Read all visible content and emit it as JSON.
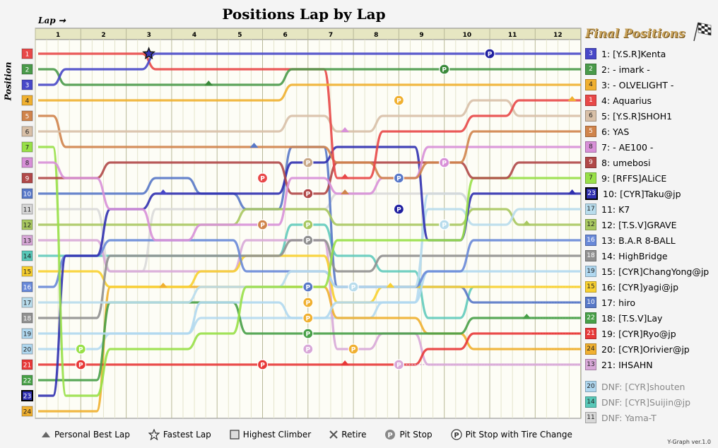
{
  "title": "Positions Lap by Lap",
  "lap_axis_label": "Lap",
  "position_axis_label": "Position",
  "final_title": "Final Positions",
  "version": "Y-Graph ver.1.0",
  "legend_items": {
    "personal_best": "Personal Best Lap",
    "fastest": "Fastest Lap",
    "highest_climber": "Highest Climber",
    "retire": "Retire",
    "pit_stop": "Pit Stop",
    "pit_tire": "Pit Stop with Tire Change"
  },
  "colors": {
    "1": "#e84848",
    "2": "#4a9a4a",
    "3": "#4848c8",
    "4": "#f0b030",
    "5": "#d0844c",
    "6": "#d8c0a8",
    "7": "#98e048",
    "8": "#d890d8",
    "9": "#b04848",
    "10": "#5878c8",
    "11": "#d8d8d8",
    "12": "#a8c860",
    "13": "#d8a8d8",
    "14": "#58c8b8",
    "15": "#f8d030",
    "16": "#6888d8",
    "17": "#b8dcec",
    "18": "#909090",
    "19": "#b0d8f0",
    "20": "#b0d8f0",
    "21": "#e83838",
    "22": "#48a048",
    "23": "#3030b0",
    "24": "#f0b030"
  },
  "final_positions": [
    {
      "pos": "1",
      "start": "3",
      "name": "1: [Y.S.R]Kenta"
    },
    {
      "pos": "2",
      "start": "2",
      "name": "2: - imark -"
    },
    {
      "pos": "3",
      "start": "4",
      "name": "3: - OLVELIGHT -"
    },
    {
      "pos": "4",
      "start": "1",
      "name": "4: Aquarius"
    },
    {
      "pos": "5",
      "start": "6",
      "name": "5: [Y.S.R]SHOH1"
    },
    {
      "pos": "6",
      "start": "5",
      "name": "6: YAS"
    },
    {
      "pos": "7",
      "start": "8",
      "name": "7: - AE100 -"
    },
    {
      "pos": "8",
      "start": "9",
      "name": "8: umebosi"
    },
    {
      "pos": "9",
      "start": "7",
      "name": "9: [RFFS]ALiCE"
    },
    {
      "pos": "10",
      "start": "23",
      "name": "10: [CYR]Taku@jp"
    },
    {
      "pos": "11",
      "start": "17",
      "name": "11: K7"
    },
    {
      "pos": "12",
      "start": "12",
      "name": "12: [T.S.V]GRAVE"
    },
    {
      "pos": "13",
      "start": "16",
      "name": "13: B.A.R 8-BALL"
    },
    {
      "pos": "14",
      "start": "18",
      "name": "14: HighBridge"
    },
    {
      "pos": "15",
      "start": "19",
      "name": "15: [CYR]ChangYong@jp"
    },
    {
      "pos": "16",
      "start": "15",
      "name": "16: [CYR]yagi@jp"
    },
    {
      "pos": "17",
      "start": "10",
      "name": "17: hiro"
    },
    {
      "pos": "18",
      "start": "22",
      "name": "18: [T.S.V]Lay"
    },
    {
      "pos": "19",
      "start": "21",
      "name": "19: [CYR]Ryo@jp"
    },
    {
      "pos": "20",
      "start": "24",
      "name": "20: [CYR]Orivier@jp"
    },
    {
      "pos": "21",
      "start": "13",
      "name": "21: IHSAHN"
    }
  ],
  "dnf": [
    {
      "start": "20",
      "name": "DNF: [CYR]shouten"
    },
    {
      "start": "14",
      "name": "DNF: [CYR]Suijin@jp"
    },
    {
      "start": "11",
      "name": "DNF: Yama-T"
    }
  ],
  "chart_data": {
    "type": "line",
    "title": "Positions Lap by Lap",
    "xlabel": "Lap",
    "ylabel": "Position",
    "laps": [
      "1",
      "2",
      "3",
      "4",
      "5",
      "6",
      "7",
      "8",
      "9",
      "10",
      "11",
      "12"
    ],
    "y_positions": [
      "1",
      "2",
      "3",
      "4",
      "5",
      "6",
      "7",
      "8",
      "9",
      "10",
      "11",
      "12",
      "13",
      "14",
      "15",
      "16",
      "17",
      "18",
      "19",
      "20",
      "21",
      "22",
      "23",
      "24"
    ],
    "series": [
      {
        "start": 3,
        "values": [
          2,
          2,
          1,
          1,
          1,
          1,
          1,
          1,
          1,
          1,
          1,
          1
        ]
      },
      {
        "start": 2,
        "values": [
          3,
          3,
          3,
          3,
          3,
          2,
          2,
          2,
          2,
          2,
          2,
          2
        ]
      },
      {
        "start": 4,
        "values": [
          4,
          4,
          4,
          4,
          4,
          3,
          3,
          3,
          3,
          3,
          3,
          3
        ]
      },
      {
        "start": 1,
        "values": [
          1,
          1,
          2,
          2,
          2,
          2,
          9,
          6,
          6,
          5,
          4,
          4
        ]
      },
      {
        "start": 6,
        "values": [
          6,
          6,
          6,
          6,
          6,
          5,
          6,
          5,
          5,
          4,
          5,
          5
        ]
      },
      {
        "start": 5,
        "values": [
          7,
          7,
          7,
          7,
          7,
          7,
          8,
          9,
          8,
          6,
          6,
          6
        ]
      },
      {
        "start": 8,
        "values": [
          9,
          11,
          13,
          12,
          12,
          9,
          10,
          9,
          7,
          7,
          7,
          7
        ]
      },
      {
        "start": 9,
        "values": [
          9,
          8,
          8,
          8,
          8,
          10,
          8,
          8,
          8,
          9,
          8,
          8
        ]
      },
      {
        "start": 7,
        "values": [
          23,
          20,
          20,
          19,
          16,
          16,
          13,
          13,
          13,
          9,
          9,
          9
        ]
      },
      {
        "start": 23,
        "values": [
          14,
          11,
          10,
          10,
          10,
          8,
          7,
          7,
          13,
          10,
          10,
          10
        ]
      },
      {
        "start": 17,
        "values": [
          17,
          17,
          17,
          16,
          16,
          15,
          16,
          16,
          11,
          12,
          11,
          11
        ]
      },
      {
        "start": 12,
        "values": [
          12,
          12,
          12,
          12,
          11,
          11,
          12,
          12,
          12,
          11,
          12,
          12
        ]
      },
      {
        "start": 16,
        "values": [
          14,
          13,
          13,
          13,
          15,
          15,
          16,
          16,
          15,
          13,
          13,
          13
        ]
      },
      {
        "start": 18,
        "values": [
          18,
          14,
          14,
          14,
          14,
          13,
          15,
          14,
          14,
          14,
          14,
          14
        ]
      },
      {
        "start": 19,
        "values": [
          19,
          19,
          19,
          17,
          17,
          18,
          17,
          17,
          15,
          15,
          15,
          15
        ]
      },
      {
        "start": 15,
        "values": [
          15,
          16,
          16,
          15,
          14,
          14,
          17,
          16,
          16,
          16,
          16,
          16
        ]
      },
      {
        "start": 10,
        "values": [
          10,
          10,
          9,
          10,
          11,
          7,
          16,
          16,
          16,
          17,
          17,
          17
        ]
      },
      {
        "start": 22,
        "values": [
          22,
          17,
          17,
          17,
          19,
          19,
          19,
          19,
          19,
          18,
          18,
          18
        ]
      },
      {
        "start": 21,
        "values": [
          21,
          21,
          21,
          21,
          21,
          21,
          21,
          21,
          20,
          19,
          19,
          19
        ]
      },
      {
        "start": 24,
        "values": [
          24,
          16,
          16,
          16,
          16,
          16,
          18,
          18,
          19,
          20,
          20,
          20
        ]
      },
      {
        "start": 13,
        "values": [
          13,
          15,
          15,
          15,
          13,
          13,
          20,
          19,
          21,
          21,
          21,
          21
        ]
      }
    ],
    "dnf_series": [
      {
        "start": 20,
        "values": [
          20,
          19,
          19,
          18,
          18,
          18,
          18,
          17,
          10,
          11
        ]
      },
      {
        "start": 14,
        "values": [
          14,
          14,
          14,
          14,
          14,
          12,
          14,
          15,
          18,
          16
        ]
      },
      {
        "start": 11,
        "values": [
          11,
          15,
          11,
          11,
          11,
          11,
          10,
          10,
          10,
          11
        ]
      }
    ]
  }
}
